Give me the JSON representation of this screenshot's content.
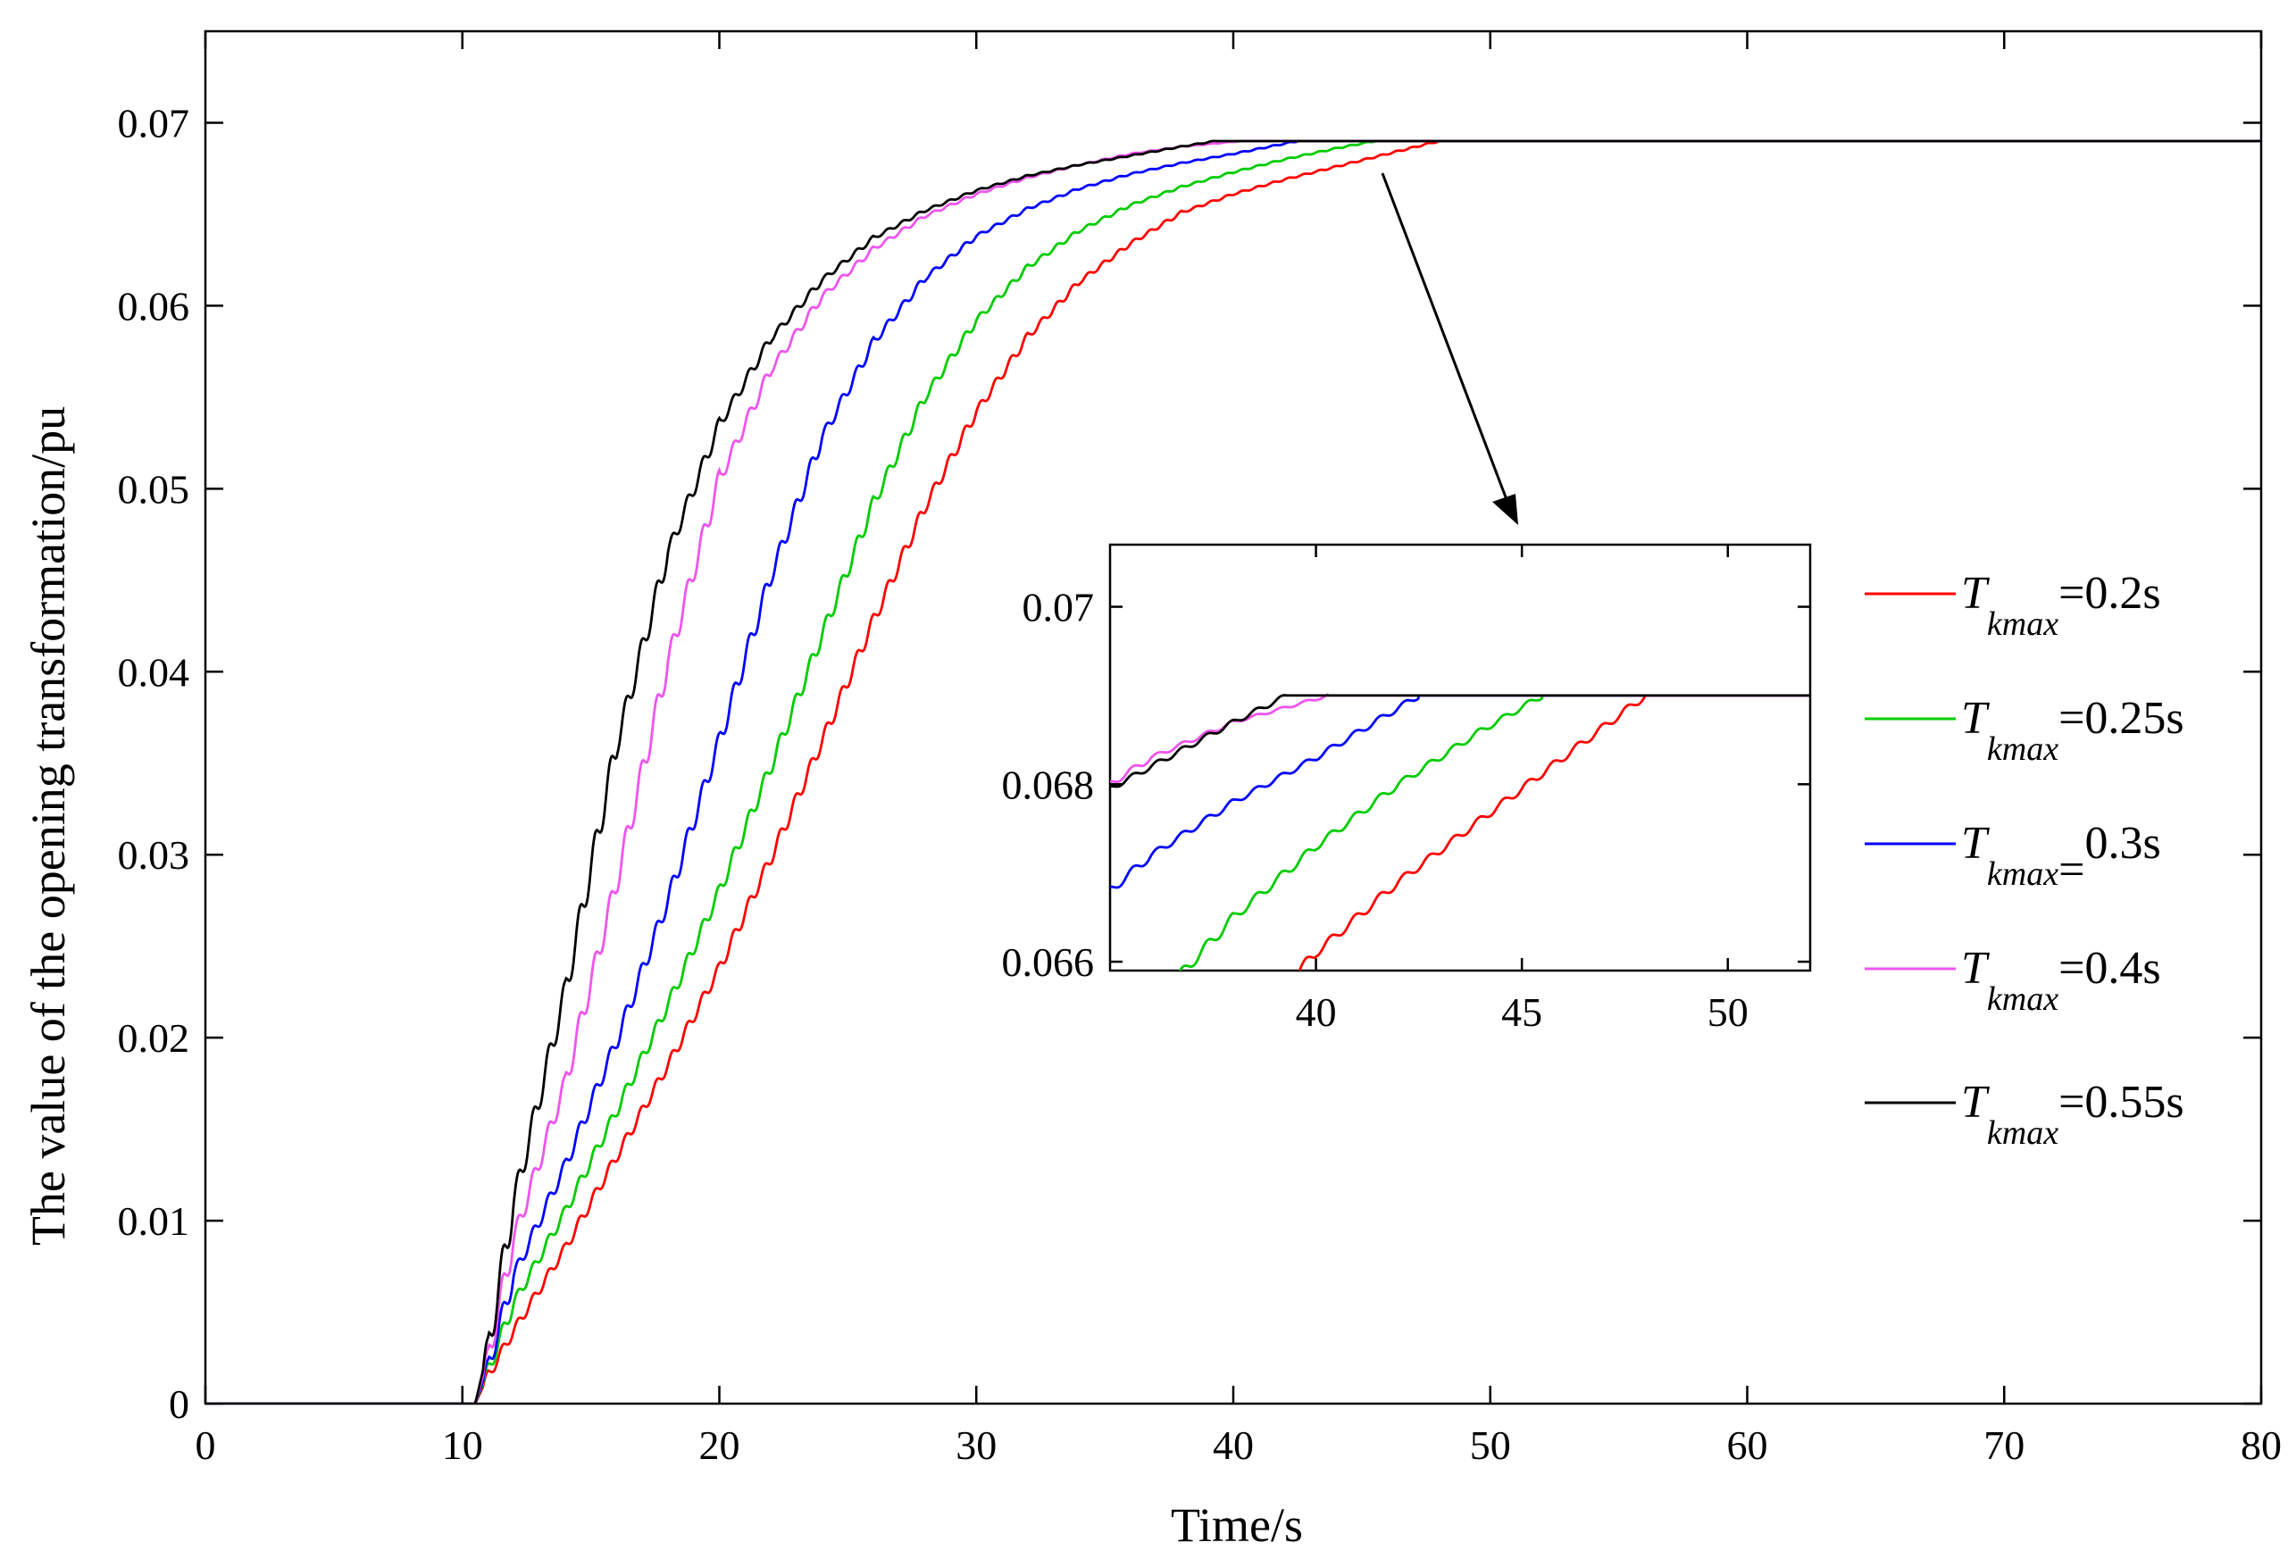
{
  "chart_data": [
    {
      "type": "line",
      "title": "",
      "xlabel": "Time/s",
      "ylabel": "The value of the opening transformation/pu",
      "xlim": [
        0,
        80
      ],
      "ylim": [
        0,
        0.075
      ],
      "xticks": [
        "0",
        "10",
        "20",
        "30",
        "40",
        "50",
        "60",
        "70",
        "80"
      ],
      "yticks": [
        "0",
        "0.01",
        "0.02",
        "0.03",
        "0.04",
        "0.05",
        "0.06",
        "0.07"
      ],
      "grid": false,
      "legend_position": "right",
      "series": [
        {
          "name": "0.2s",
          "label_main": "T",
          "label_sub": "kmax",
          "label_suffix": "=0.2s",
          "color": "#ff0000",
          "x": [
            0,
            10.5,
            11,
            12,
            14,
            16,
            18,
            20,
            22,
            24,
            26,
            28,
            30,
            32,
            34,
            36,
            38,
            40,
            42,
            44,
            46,
            48,
            80
          ],
          "y": [
            0,
            0,
            0.0015,
            0.004,
            0.0085,
            0.0135,
            0.0185,
            0.0238,
            0.0298,
            0.0362,
            0.0428,
            0.049,
            0.0542,
            0.0583,
            0.0613,
            0.0634,
            0.0651,
            0.0661,
            0.0669,
            0.0676,
            0.0683,
            0.069,
            0.069
          ]
        },
        {
          "name": "0.25s",
          "label_main": "T",
          "label_sub": "kmax",
          "label_suffix": "=0.25s",
          "color": "#00cc00",
          "x": [
            0,
            10.5,
            11,
            12,
            14,
            16,
            18,
            20,
            22,
            24,
            26,
            28,
            30,
            32,
            34,
            36,
            38,
            40,
            42,
            44,
            45.5,
            80
          ],
          "y": [
            0,
            0,
            0.0018,
            0.0055,
            0.0105,
            0.016,
            0.0218,
            0.028,
            0.0348,
            0.042,
            0.0492,
            0.055,
            0.0592,
            0.0621,
            0.0641,
            0.0655,
            0.0665,
            0.0673,
            0.068,
            0.0686,
            0.069,
            0.069
          ]
        },
        {
          "name": "0.3s",
          "label_main": "T",
          "label_sub": "kmax",
          "label_suffix": "0.3s",
          "label_equals": "=",
          "color": "#0000ff",
          "x": [
            0,
            10.5,
            11,
            12,
            14,
            16,
            18,
            20,
            22,
            24,
            26,
            28,
            30,
            32,
            34,
            36,
            38,
            40,
            42.5,
            80
          ],
          "y": [
            0,
            0,
            0.002,
            0.007,
            0.013,
            0.0198,
            0.0275,
            0.0362,
            0.0452,
            0.0528,
            0.058,
            0.0615,
            0.0638,
            0.0653,
            0.0664,
            0.0672,
            0.0678,
            0.0683,
            0.069,
            0.069
          ]
        },
        {
          "name": "0.4s",
          "label_main": "T",
          "label_sub": "kmax",
          "label_suffix": "=0.4s",
          "color": "#ee55ee",
          "x": [
            0,
            10.5,
            11,
            12,
            14,
            16,
            18,
            20,
            22,
            24,
            26,
            28,
            30,
            32,
            34,
            36,
            38,
            40.3,
            80
          ],
          "y": [
            0,
            0,
            0.0025,
            0.009,
            0.0175,
            0.0285,
            0.0405,
            0.0505,
            0.0565,
            0.0605,
            0.0631,
            0.0649,
            0.0661,
            0.067,
            0.0677,
            0.0683,
            0.0687,
            0.069,
            0.069
          ]
        },
        {
          "name": "0.55s",
          "label_main": "T",
          "label_sub": "kmax",
          "label_suffix": "=0.55s",
          "color": "#000000",
          "x": [
            0,
            10.5,
            11,
            12,
            14,
            16,
            18,
            20,
            22,
            24,
            26,
            28,
            30,
            32,
            34,
            36,
            38,
            39.3,
            80
          ],
          "y": [
            0,
            0,
            0.003,
            0.011,
            0.0225,
            0.036,
            0.0465,
            0.0535,
            0.0582,
            0.0614,
            0.0637,
            0.0652,
            0.0663,
            0.0671,
            0.0677,
            0.0682,
            0.0687,
            0.069,
            0.069
          ]
        }
      ]
    },
    {
      "type": "line",
      "role": "inset",
      "title": "",
      "xlabel": "",
      "ylabel": "",
      "xlim": [
        35,
        52
      ],
      "ylim": [
        0.0659,
        0.0707
      ],
      "xticks": [
        "40",
        "45",
        "50"
      ],
      "yticks": [
        "0.066",
        "0.068",
        "0.07"
      ],
      "grid": false
    }
  ]
}
